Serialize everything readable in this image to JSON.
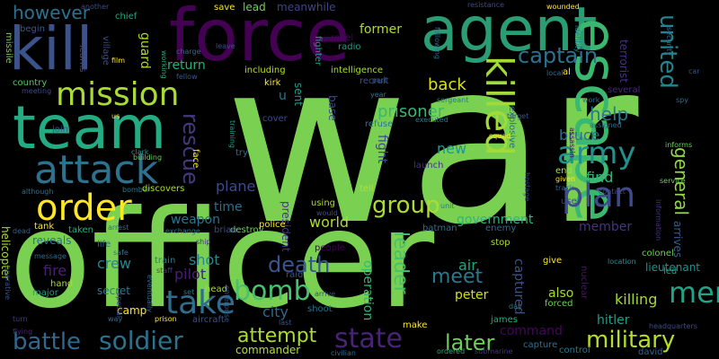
{
  "words": [
    {
      "text": "war",
      "color": "#7ad151"
    },
    {
      "text": "officer",
      "color": "#7ad151"
    },
    {
      "text": "force",
      "color": "#440154"
    },
    {
      "text": "agent",
      "color": "#2a9d74"
    },
    {
      "text": "kill",
      "color": "#3b528b"
    },
    {
      "text": "team",
      "color": "#25ab82"
    },
    {
      "text": "escape",
      "color": "#3ab86f"
    },
    {
      "text": "mission",
      "color": "#a8dc34"
    },
    {
      "text": "attack",
      "color": "#2c718e"
    },
    {
      "text": "order",
      "color": "#fde725"
    },
    {
      "text": "killed",
      "color": "#a2da37"
    },
    {
      "text": "army",
      "color": "#21918c"
    },
    {
      "text": "plan",
      "color": "#3e4a89"
    },
    {
      "text": "captain",
      "color": "#2c718e"
    },
    {
      "text": "united",
      "color": "#25838e"
    },
    {
      "text": "take",
      "color": "#2e6d8e"
    },
    {
      "text": "bomb",
      "color": "#48c16e"
    },
    {
      "text": "soldier",
      "color": "#2c718e"
    },
    {
      "text": "state",
      "color": "#482475"
    },
    {
      "text": "battle",
      "color": "#31688e"
    },
    {
      "text": "death",
      "color": "#39558c"
    },
    {
      "text": "men",
      "color": "#20a386"
    },
    {
      "text": "military",
      "color": "#b5de2b"
    },
    {
      "text": "later",
      "color": "#6ece58"
    },
    {
      "text": "attempt",
      "color": "#addc30"
    },
    {
      "text": "group",
      "color": "#addc30"
    },
    {
      "text": "rescue",
      "color": "#44397e"
    },
    {
      "text": "meet",
      "color": "#2a788e"
    },
    {
      "text": "leader",
      "color": "#48c16e"
    },
    {
      "text": "however",
      "color": "#2c718e"
    },
    {
      "text": "general",
      "color": "#8fd744"
    },
    {
      "text": "help",
      "color": "#2a788e"
    },
    {
      "text": "prisoner",
      "color": "#3ab86f"
    },
    {
      "text": "back",
      "color": "#d8e219"
    },
    {
      "text": "bruce",
      "color": "#2f6c8e"
    },
    {
      "text": "find",
      "color": "#31b57b"
    },
    {
      "text": "new",
      "color": "#1f968b"
    },
    {
      "text": "plane",
      "color": "#3e4a89"
    },
    {
      "text": "world",
      "color": "#addc30"
    },
    {
      "text": "city",
      "color": "#31688e"
    },
    {
      "text": "fire",
      "color": "#482173"
    },
    {
      "text": "crew",
      "color": "#25848e"
    },
    {
      "text": "shot",
      "color": "#23898e"
    },
    {
      "text": "pilot",
      "color": "#481f70"
    },
    {
      "text": "weapon",
      "color": "#2b748e"
    },
    {
      "text": "return",
      "color": "#29af7f"
    },
    {
      "text": "guard",
      "color": "#addc30"
    },
    {
      "text": "time",
      "color": "#2e6e8e"
    },
    {
      "text": "air",
      "color": "#22a785"
    },
    {
      "text": "peter",
      "color": "#d0e11c"
    },
    {
      "text": "also",
      "color": "#a5db36"
    },
    {
      "text": "killing",
      "color": "#a2da37"
    },
    {
      "text": "hitler",
      "color": "#1f9e89"
    },
    {
      "text": "lieutenant",
      "color": "#20928c"
    },
    {
      "text": "command",
      "color": "#46075a"
    },
    {
      "text": "government",
      "color": "#31b57b"
    },
    {
      "text": "member",
      "color": "#46337f"
    },
    {
      "text": "captured",
      "color": "#3b528b"
    },
    {
      "text": "operation",
      "color": "#35b779"
    },
    {
      "text": "fight",
      "color": "#3e4989"
    },
    {
      "text": "former",
      "color": "#addc30"
    },
    {
      "text": "lead",
      "color": "#6ece58"
    },
    {
      "text": "meanwhile",
      "color": "#414487"
    },
    {
      "text": "sent",
      "color": "#1e9b8a"
    },
    {
      "text": "base",
      "color": "#3e4989"
    },
    {
      "text": "president",
      "color": "#46337f"
    },
    {
      "text": "terrorist",
      "color": "#46337f"
    },
    {
      "text": "secret",
      "color": "#2a788e"
    },
    {
      "text": "helicopter",
      "color": "#addc30"
    },
    {
      "text": "reveals",
      "color": "#2c718e"
    },
    {
      "text": "camp",
      "color": "#fde725"
    },
    {
      "text": "arrives",
      "color": "#35608d"
    },
    {
      "text": "led",
      "color": "#22a785"
    },
    {
      "text": "colonel",
      "color": "#6ece58"
    },
    {
      "text": "destroy",
      "color": "#6ece58"
    },
    {
      "text": "including",
      "color": "#b5de2b"
    },
    {
      "text": "intelligence",
      "color": "#a5db36"
    },
    {
      "text": "village",
      "color": "#3e4a89"
    },
    {
      "text": "save",
      "color": "#fde725"
    },
    {
      "text": "fighter",
      "color": "#1f9a8a"
    },
    {
      "text": "rebel",
      "color": "#46085c"
    },
    {
      "text": "radio",
      "color": "#1e9c89"
    },
    {
      "text": "recruit",
      "color": "#3b528b"
    },
    {
      "text": "kirk",
      "color": "#fde725"
    },
    {
      "text": "u",
      "color": "#2a788e"
    },
    {
      "text": "try",
      "color": "#31688e"
    },
    {
      "text": "face",
      "color": "#fde725"
    },
    {
      "text": "chief",
      "color": "#22a785"
    },
    {
      "text": "another",
      "color": "#3e4989"
    },
    {
      "text": "learns",
      "color": "#414487"
    },
    {
      "text": "begin",
      "color": "#39568c"
    },
    {
      "text": "missile",
      "color": "#7ad151"
    },
    {
      "text": "country",
      "color": "#52c569"
    },
    {
      "text": "join",
      "color": "#3b528b"
    },
    {
      "text": "using",
      "color": "#addc30"
    },
    {
      "text": "people",
      "color": "#440154"
    },
    {
      "text": "raid",
      "color": "#3b528b"
    },
    {
      "text": "police",
      "color": "#fde725"
    },
    {
      "text": "tank",
      "color": "#fde725"
    },
    {
      "text": "taken",
      "color": "#25ab82"
    },
    {
      "text": "life",
      "color": "#31688e"
    },
    {
      "text": "brian",
      "color": "#3e4a89"
    },
    {
      "text": "exchange",
      "color": "#2a788e"
    },
    {
      "text": "ship",
      "color": "#46337f"
    },
    {
      "text": "train",
      "color": "#287c8e"
    },
    {
      "text": "staff",
      "color": "#433e85"
    },
    {
      "text": "head",
      "color": "#a5db36"
    },
    {
      "text": "batman",
      "color": "#2e6e8e"
    },
    {
      "text": "enemy",
      "color": "#31688e"
    },
    {
      "text": "stop",
      "color": "#addc30"
    },
    {
      "text": "arrest",
      "color": "#2f6c8e"
    },
    {
      "text": "bomber",
      "color": "#2a788e"
    },
    {
      "text": "discovers",
      "color": "#addc30"
    },
    {
      "text": "building",
      "color": "#6ece58"
    },
    {
      "text": "working",
      "color": "#23a983"
    },
    {
      "text": "charge",
      "color": "#31688e"
    },
    {
      "text": "fellow",
      "color": "#38588c"
    },
    {
      "text": "film",
      "color": "#fde725"
    },
    {
      "text": "clark",
      "color": "#1e9c89"
    },
    {
      "text": "message",
      "color": "#2f6c8e"
    },
    {
      "text": "safe",
      "color": "#2a788e"
    },
    {
      "text": "hand",
      "color": "#a8dc34"
    },
    {
      "text": "major",
      "color": "#1f9a8a"
    },
    {
      "text": "operative",
      "color": "#39568c"
    },
    {
      "text": "turn",
      "color": "#443a83"
    },
    {
      "text": "flying",
      "color": "#482878"
    },
    {
      "text": "although",
      "color": "#2f6c8e"
    },
    {
      "text": "dead",
      "color": "#35608d"
    },
    {
      "text": "meeting",
      "color": "#3e4989"
    },
    {
      "text": "way",
      "color": "#2f6c8e"
    },
    {
      "text": "special",
      "color": "#3e4a89"
    },
    {
      "text": "prison",
      "color": "#fde725"
    },
    {
      "text": "aircraft",
      "color": "#3b528b"
    },
    {
      "text": "enterprise",
      "color": "#38588c"
    },
    {
      "text": "shoot",
      "color": "#2c718e"
    },
    {
      "text": "last",
      "color": "#3b528b"
    },
    {
      "text": "commander",
      "color": "#b5de2b"
    },
    {
      "text": "civilian",
      "color": "#2f6c8e"
    },
    {
      "text": "ordered",
      "color": "#25ab82"
    },
    {
      "text": "submarine",
      "color": "#46337f"
    },
    {
      "text": "capture",
      "color": "#2c718e"
    },
    {
      "text": "control",
      "color": "#2a788e"
    },
    {
      "text": "david",
      "color": "#31688e"
    },
    {
      "text": "headquarters",
      "color": "#3e4a89"
    },
    {
      "text": "make",
      "color": "#fde725"
    },
    {
      "text": "james",
      "color": "#25ab82"
    },
    {
      "text": "day",
      "color": "#2a788e"
    },
    {
      "text": "forced",
      "color": "#6ece58"
    },
    {
      "text": "give",
      "color": "#fde725"
    },
    {
      "text": "nuclear",
      "color": "#481668"
    },
    {
      "text": "location",
      "color": "#21918c"
    },
    {
      "text": "hostage",
      "color": "#3e4a89"
    },
    {
      "text": "contact",
      "color": "#3e4a89"
    },
    {
      "text": "service",
      "color": "#6ece58"
    },
    {
      "text": "informs",
      "color": "#6ece58"
    },
    {
      "text": "spy",
      "color": "#2f6c8e"
    },
    {
      "text": "information",
      "color": "#46337f"
    },
    {
      "text": "several",
      "color": "#482878"
    },
    {
      "text": "assassin",
      "color": "#440154"
    },
    {
      "text": "security",
      "color": "#2f6c8e"
    },
    {
      "text": "identity",
      "color": "#2a788e"
    },
    {
      "text": "wounded",
      "color": "#fde725"
    },
    {
      "text": "al",
      "color": "#fde725"
    },
    {
      "text": "local",
      "color": "#2f6c8e"
    },
    {
      "text": "explosive",
      "color": "#31688e"
    },
    {
      "text": "sergeant",
      "color": "#2a788e"
    },
    {
      "text": "squad",
      "color": "#fde725"
    },
    {
      "text": "target",
      "color": "#3b528b"
    },
    {
      "text": "executed",
      "color": "#2a788e"
    },
    {
      "text": "refuse",
      "color": "#2a788e"
    },
    {
      "text": "launch",
      "color": "#46337f"
    },
    {
      "text": "unit",
      "color": "#2a788e"
    },
    {
      "text": "use",
      "color": "#3e4a89"
    },
    {
      "text": "end",
      "color": "#addc30"
    },
    {
      "text": "given",
      "color": "#fde725"
    },
    {
      "text": "track",
      "color": "#31688e"
    },
    {
      "text": "assigned",
      "color": "#2f6c8e"
    },
    {
      "text": "work",
      "color": "#2f6c8e"
    },
    {
      "text": "year",
      "color": "#2a788e"
    },
    {
      "text": "part",
      "color": "#3b528b"
    },
    {
      "text": "following",
      "color": "#2f6c8e"
    },
    {
      "text": "resistance",
      "color": "#3e4a89"
    },
    {
      "text": "leave",
      "color": "#3b528b"
    },
    {
      "text": "cover",
      "color": "#3e4a89"
    },
    {
      "text": "training",
      "color": "#1e9c89"
    },
    {
      "text": "tell",
      "color": "#b5de2b"
    },
    {
      "text": "would",
      "color": "#3e4a89"
    },
    {
      "text": "arrive",
      "color": "#3e4a89"
    },
    {
      "text": "eventually",
      "color": "#31688e"
    },
    {
      "text": "set",
      "color": "#2a788e"
    },
    {
      "text": "us",
      "color": "#fde725"
    },
    {
      "text": "car",
      "color": "#3b528b"
    }
  ]
}
